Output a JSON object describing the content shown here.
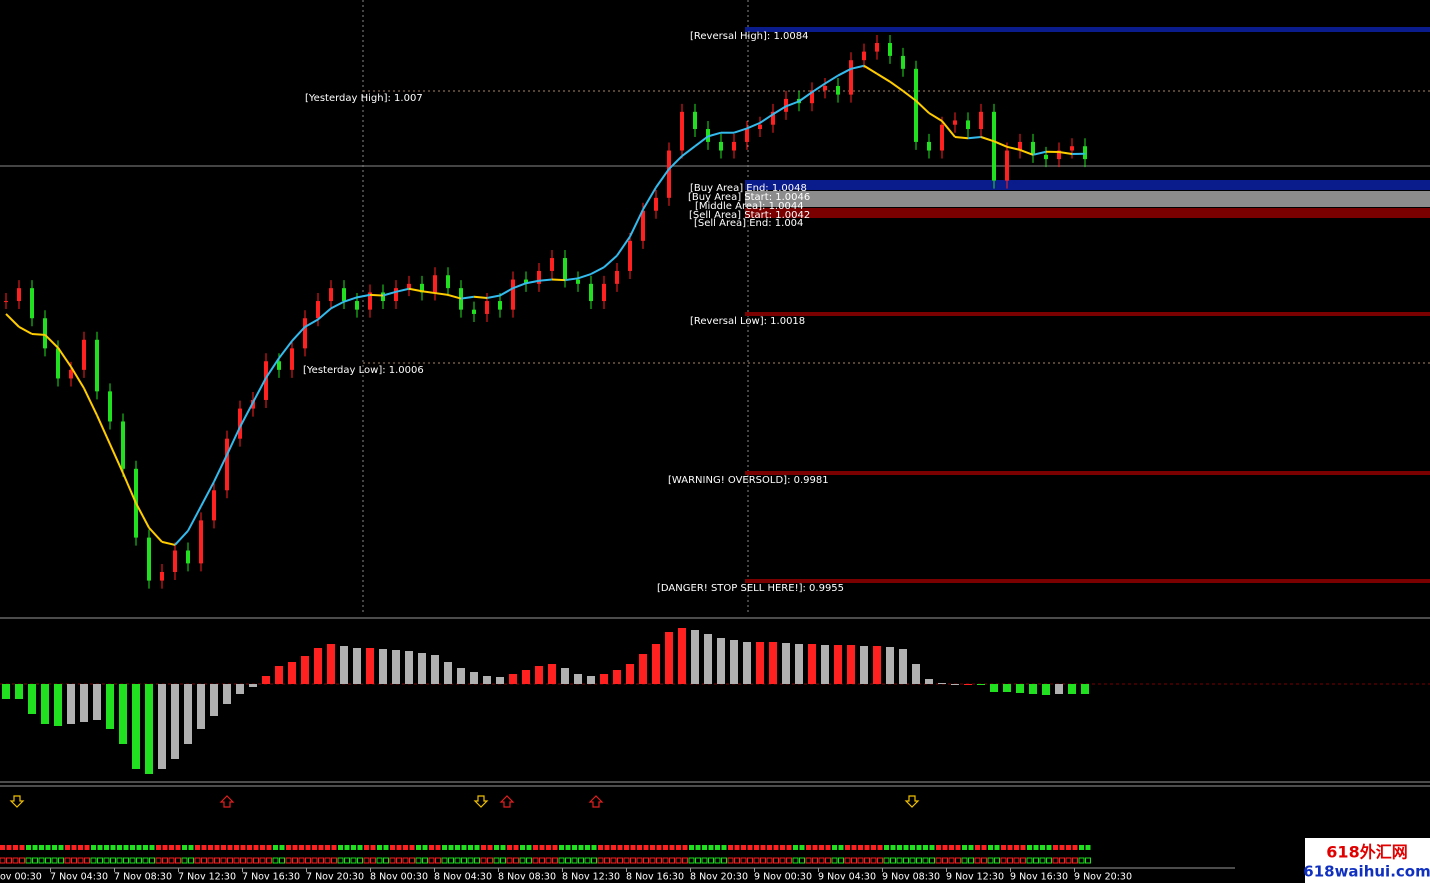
{
  "chart_data": {
    "type": "candlestick",
    "closes": [
      1.0021,
      1.0024,
      1.0017,
      1.001,
      1.0003,
      1.0005,
      1.0012,
      1.0,
      0.9993,
      0.9982,
      0.9966,
      0.9956,
      0.9958,
      0.9963,
      0.996,
      0.997,
      0.9977,
      0.9989,
      0.9996,
      0.9998,
      1.0007,
      1.0005,
      1.001,
      1.0017,
      1.0021,
      1.0024,
      1.0021,
      1.0019,
      1.0023,
      1.0021,
      1.0024,
      1.0025,
      1.0023,
      1.0027,
      1.0024,
      1.0019,
      1.0018,
      1.0021,
      1.0019,
      1.0026,
      1.0025,
      1.0028,
      1.0031,
      1.0026,
      1.0025,
      1.0021,
      1.0025,
      1.0028,
      1.0035,
      1.0042,
      1.0045,
      1.0056,
      1.0065,
      1.0061,
      1.0058,
      1.0056,
      1.0058,
      1.0061,
      1.0062,
      1.0065,
      1.0068,
      1.0067,
      1.007,
      1.0071,
      1.0069,
      1.0077,
      1.0079,
      1.0081,
      1.0078,
      1.0075,
      1.0058,
      1.0056,
      1.0062,
      1.0063,
      1.0061,
      1.0065,
      1.0049,
      1.0056,
      1.0058,
      1.0055,
      1.0054,
      1.0056,
      1.0057,
      1.0054
    ],
    "ylim": [
      0.9948,
      1.0091
    ],
    "oscillator": [
      -15,
      -15,
      -30,
      -40,
      -42,
      -40,
      -38,
      -36,
      -45,
      -60,
      -85,
      -90,
      -85,
      -75,
      -60,
      -45,
      -32,
      -20,
      -10,
      -3,
      8,
      18,
      22,
      28,
      36,
      40,
      38,
      36,
      36,
      35,
      34,
      33,
      31,
      29,
      22,
      16,
      12,
      8,
      7,
      10,
      14,
      18,
      20,
      16,
      10,
      8,
      10,
      14,
      20,
      30,
      40,
      52,
      56,
      54,
      50,
      46,
      44,
      42,
      42,
      42,
      41,
      40,
      40,
      39,
      39,
      39,
      38,
      38,
      37,
      35,
      20,
      5,
      1,
      0,
      0,
      -1,
      -8,
      -8,
      -9,
      -10,
      -11,
      -10,
      -10,
      -10
    ],
    "oscillator_ylim": [
      -96,
      62
    ]
  },
  "levels": [
    "[Reversal High]: 1.0084",
    "[Yesterday High]: 1.007",
    "[Buy Area] End: 1.0048",
    "[Buy Area] Start: 1.0046",
    "[Middle Area]: 1.0044",
    "[Sell Area] Start: 1.0042",
    "[Sell Area] End: 1.004",
    "[Reversal Low]: 1.0018",
    "[Yesterday Low]: 1.0006",
    "[WARNING! OVERSOLD]: 0.9981",
    "[DANGER! STOP SELL HERE!]: 0.9955"
  ],
  "time_labels": [
    "ov 00:30",
    "7 Nov 04:30",
    "7 Nov 08:30",
    "7 Nov 12:30",
    "7 Nov 16:30",
    "7 Nov 20:30",
    "8 Nov 00:30",
    "8 Nov 04:30",
    "8 Nov 08:30",
    "8 Nov 12:30",
    "8 Nov 16:30",
    "8 Nov 20:30",
    "9 Nov 00:30",
    "9 Nov 04:30",
    "9 Nov 08:30",
    "9 Nov 12:30",
    "9 Nov 16:30",
    "9 Nov 20:30"
  ],
  "watermark": {
    "title": "618外汇网",
    "url": "618waihui.com"
  }
}
